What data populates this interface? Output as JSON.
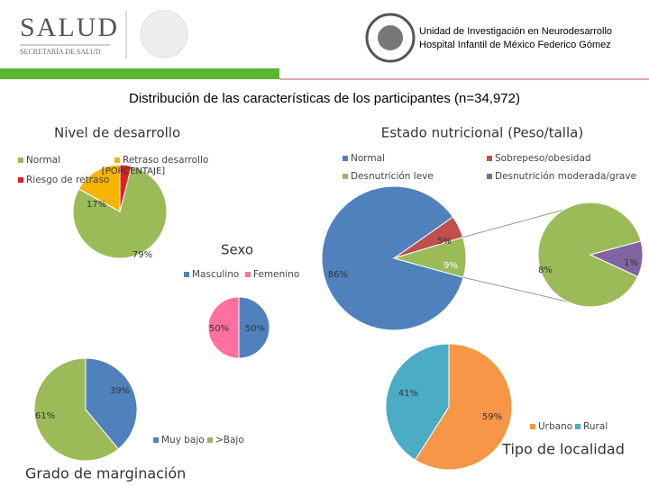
{
  "header": {
    "logo_title": "SALUD",
    "logo_subtitle": "SECRETARÍA DE SALUD",
    "unit": "Unidad de Investigación en Neurodesarrollo",
    "hospital": "Hospital Infantil de México Federico Gómez"
  },
  "title": "Distribución de las características de los participantes (n=34,972)",
  "chart_data": [
    {
      "type": "pie",
      "title": "Nivel de desarrollo",
      "categories": [
        "Normal",
        "Retraso desarrollo",
        "Riesgo de retraso"
      ],
      "colors": [
        "#9bbb59",
        "#f5b400",
        "#e0201c"
      ],
      "values": [
        79,
        17,
        4
      ],
      "value_labels": [
        "79%",
        "17%",
        null
      ],
      "annotation": "[PORCENTAJE]"
    },
    {
      "type": "pie-of-pie",
      "title": "Estado nutricional (Peso/talla)",
      "categories": [
        "Normal",
        "Sobrepeso/obesidad",
        "Desnutrición leve",
        "Desnutrición moderada/grave"
      ],
      "colors": [
        "#4f81bd",
        "#c0504d",
        "#9bbb59",
        "#8064a2"
      ],
      "values": [
        86,
        5,
        8,
        1
      ],
      "value_labels": [
        "86%",
        "5%",
        "8%",
        "1%"
      ],
      "other_value": 9,
      "other_value_label": "9%"
    },
    {
      "type": "pie",
      "title": "Sexo",
      "categories": [
        "Masculino",
        "Femenino"
      ],
      "colors": [
        "#4f81bd",
        "#ff6f9f"
      ],
      "values": [
        50,
        50
      ],
      "value_labels": [
        "50%",
        "50%"
      ]
    },
    {
      "type": "pie",
      "title": "Grado de marginación",
      "categories": [
        "Muy bajo",
        ">Bajo"
      ],
      "colors": [
        "#4f81bd",
        "#9bbb59"
      ],
      "values": [
        39,
        61
      ],
      "value_labels": [
        "39%",
        "61%"
      ]
    },
    {
      "type": "pie",
      "title": "Tipo de localidad",
      "categories": [
        "Urbano",
        "Rural"
      ],
      "colors": [
        "#f79646",
        "#4bacc6"
      ],
      "values": [
        59,
        41
      ],
      "value_labels": [
        "59%",
        "41%"
      ]
    }
  ]
}
